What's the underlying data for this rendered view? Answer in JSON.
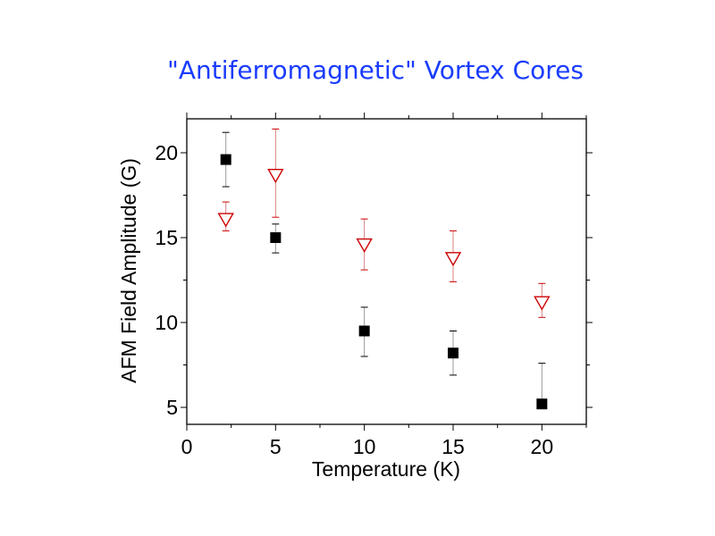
{
  "chart_data": {
    "type": "scatter",
    "title": "\"Antiferromagnetic\" Vortex Cores",
    "xlabel": "Temperature (K)",
    "ylabel": "AFM Field Amplitude (G)",
    "xlim": [
      0,
      22.5
    ],
    "ylim": [
      4,
      22
    ],
    "xticks": [
      "0",
      "5",
      "10",
      "15",
      "20"
    ],
    "yticks": [
      "5",
      "10",
      "15",
      "20"
    ],
    "grid": false,
    "colors": {
      "square": "#000000",
      "triangle": "#cc0000"
    },
    "series": [
      {
        "marker": "filled-square",
        "x": [
          2.2,
          5,
          10,
          15,
          20
        ],
        "y": [
          19.6,
          15.0,
          9.5,
          8.2,
          5.2
        ],
        "err_hi": [
          21.2,
          15.8,
          10.9,
          9.5,
          7.6
        ],
        "err_lo": [
          18.0,
          14.1,
          8.0,
          6.9,
          5.0
        ]
      },
      {
        "marker": "open-triangle-down",
        "x": [
          2.2,
          5,
          10,
          15,
          20
        ],
        "y": [
          16.1,
          18.7,
          14.6,
          13.8,
          11.2
        ],
        "err_hi": [
          17.1,
          21.4,
          16.1,
          15.4,
          12.3
        ],
        "err_lo": [
          15.4,
          16.2,
          13.1,
          12.4,
          10.3
        ]
      }
    ]
  }
}
